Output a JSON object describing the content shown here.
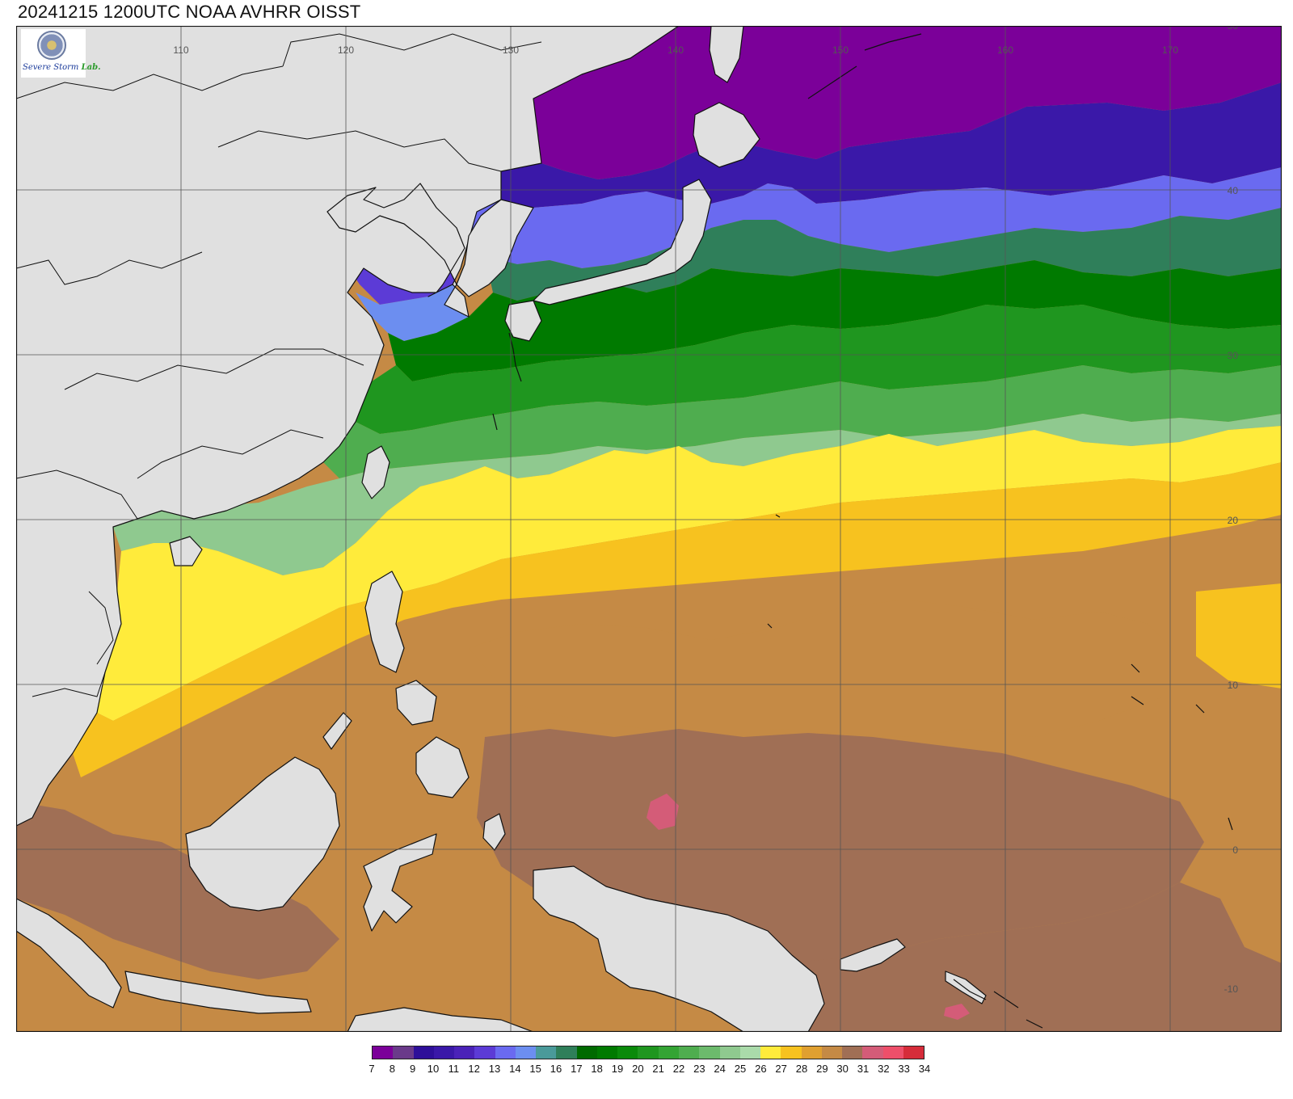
{
  "title": "20241215 1200UTC NOAA AVHRR OISST",
  "logo": {
    "text_prefix": "Severe Storm",
    "text_suffix": "Lab."
  },
  "map": {
    "projection": "equirectangular",
    "lon_range": [
      100,
      175
    ],
    "lat_range": [
      -10,
      50
    ],
    "lon_ticks": [
      "110",
      "120",
      "130",
      "140",
      "150",
      "160",
      "170"
    ],
    "lat_ticks": [
      "50",
      "40",
      "30",
      "20",
      "10",
      "0",
      "-10"
    ],
    "land_color": "#e0e0e0",
    "grid_color": "#555555",
    "coast_color": "#111111"
  },
  "colorbar": {
    "labels": [
      "7",
      "8",
      "9",
      "10",
      "11",
      "12",
      "13",
      "14",
      "15",
      "16",
      "17",
      "18",
      "19",
      "20",
      "21",
      "22",
      "23",
      "24",
      "25",
      "26",
      "27",
      "28",
      "29",
      "30",
      "31",
      "32",
      "33",
      "34"
    ],
    "colors": [
      "#7b0099",
      "#6a3a8a",
      "#2e0f99",
      "#3a18a8",
      "#4a22b8",
      "#5c3bd6",
      "#6a6af0",
      "#6c8ef0",
      "#4a9a9a",
      "#2f7f5a",
      "#006a00",
      "#007a00",
      "#0a8a0a",
      "#1f961f",
      "#34a434",
      "#4fad4f",
      "#6cba6c",
      "#8fc98f",
      "#aadbaa",
      "#ffeb3b",
      "#f7c21f",
      "#e0a030",
      "#c58a45",
      "#a06f55",
      "#d45c78",
      "#ee4f6a",
      "#d62c3a"
    ]
  }
}
